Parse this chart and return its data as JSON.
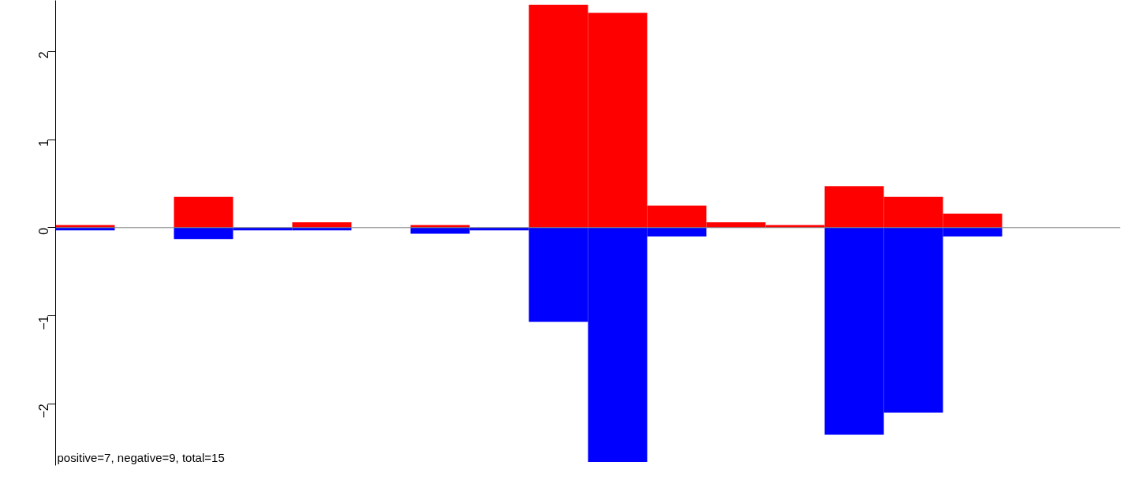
{
  "chart_data": {
    "type": "bar",
    "categories": [
      null,
      null,
      null,
      null,
      null,
      null,
      null,
      null,
      null,
      null,
      null,
      null,
      null,
      null,
      null,
      null,
      null,
      null
    ],
    "series": [
      {
        "color": "#ff0000",
        "values": [
          0.03,
          0,
          0.35,
          0,
          0.06,
          0,
          0.03,
          0,
          2.53,
          2.44,
          0.25,
          0.06,
          0.03,
          0.47,
          0.35,
          0.16,
          0,
          0
        ]
      },
      {
        "color": "#0000ff",
        "values": [
          -0.03,
          0,
          -0.13,
          -0.03,
          -0.03,
          0,
          -0.07,
          -0.03,
          -1.07,
          -2.66,
          -0.1,
          0,
          0,
          -2.35,
          -2.1,
          -0.1,
          0,
          0
        ]
      }
    ],
    "ylim": [
      -2.7,
      2.58
    ],
    "yticks": [
      -2,
      -1,
      0,
      1,
      2
    ],
    "ref_lines": [
      {
        "axis": "y",
        "value": 0,
        "color": "#808080"
      }
    ],
    "annotations": [
      "positive=7, negative=9, total=15"
    ],
    "tick_labels": "y",
    "grid": false,
    "stacked": true
  }
}
